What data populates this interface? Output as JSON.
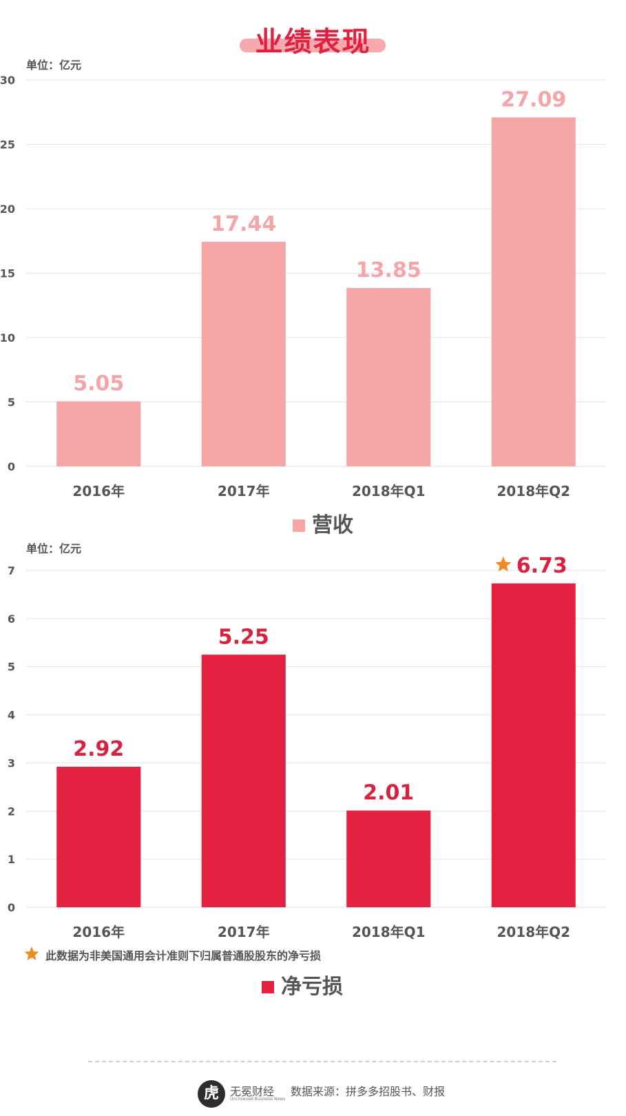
{
  "page_title": "业绩表现",
  "chart_data": [
    {
      "type": "bar",
      "unit_label": "单位：亿元",
      "categories": [
        "2016年",
        "2017年",
        "2018年Q1",
        "2018年Q2"
      ],
      "series": [
        {
          "name": "营收",
          "values": [
            5.05,
            17.44,
            13.85,
            27.09
          ]
        }
      ],
      "data_labels": [
        "5.05",
        "17.44",
        "13.85",
        "27.09"
      ],
      "ylim": [
        0,
        30
      ],
      "yticks": [
        0,
        5,
        10,
        15,
        20,
        25,
        30
      ],
      "grid": true,
      "legend_position": "bottom-center",
      "bar_color": "#f7a6a8",
      "label_color": "#f4a5a7"
    },
    {
      "type": "bar",
      "unit_label": "单位：亿元",
      "categories": [
        "2016年",
        "2017年",
        "2018年Q1",
        "2018年Q2"
      ],
      "series": [
        {
          "name": "净亏损",
          "values": [
            2.92,
            5.25,
            2.01,
            6.73
          ]
        }
      ],
      "data_labels": [
        "2.92",
        "5.25",
        "2.01",
        "6.73"
      ],
      "starred_index": 3,
      "ylim": [
        0,
        7
      ],
      "yticks": [
        0,
        1,
        2,
        3,
        4,
        5,
        6,
        7
      ],
      "grid": true,
      "legend_position": "bottom-center",
      "bar_color": "#e52142",
      "label_color": "#d6213f",
      "star_color": "#f08a24",
      "footnote": "此数据为非美国通用会计准则下归属普通股股东的净亏损"
    }
  ],
  "footer": {
    "logo_char": "虎",
    "logo_name": "无冕财经",
    "logo_sub": "Uncrowned Business News",
    "source": "数据来源：拼多多招股书、财报"
  },
  "colors": {
    "accent": "#e0203f",
    "title_bar": "#f7a9ad",
    "grid": "#e3e3e3",
    "axis_text": "#555555"
  }
}
